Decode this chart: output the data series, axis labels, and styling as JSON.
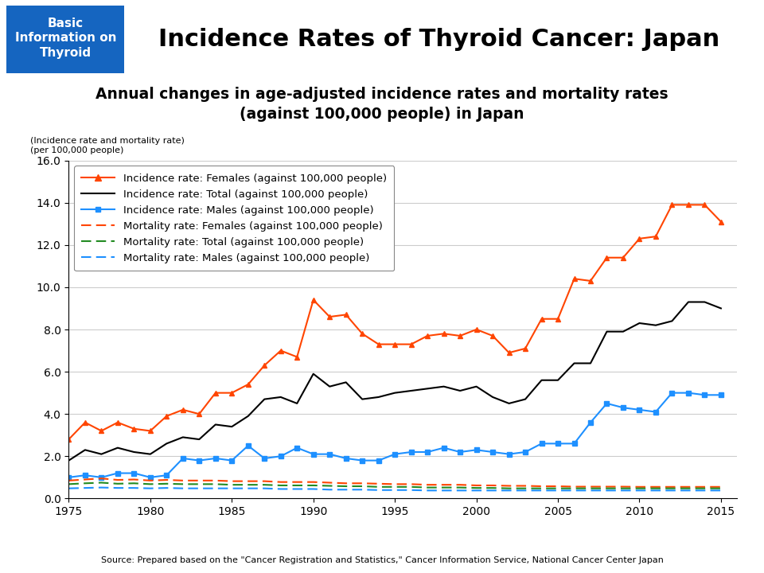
{
  "title_main": "Incidence Rates of Thyroid Cancer: Japan",
  "title_box": "Basic\nInformation on\nThyroid",
  "subtitle": "Annual changes in age-adjusted incidence rates and mortality rates\n(against 100,000 people) in Japan",
  "ylabel": "(Incidence rate and mortality rate)\n(per 100,000 people)",
  "source": "Source: Prepared based on the \"Cancer Registration and Statistics,\" Cancer Information Service, National Cancer Center Japan",
  "ylim": [
    0.0,
    16.0
  ],
  "yticks": [
    0.0,
    2.0,
    4.0,
    6.0,
    8.0,
    10.0,
    12.0,
    14.0,
    16.0
  ],
  "xlim": [
    1975,
    2016
  ],
  "xticks": [
    1975,
    1980,
    1985,
    1990,
    1995,
    2000,
    2005,
    2010,
    2015
  ],
  "incidence_females": {
    "years": [
      1975,
      1976,
      1977,
      1978,
      1979,
      1980,
      1981,
      1982,
      1983,
      1984,
      1985,
      1986,
      1987,
      1988,
      1989,
      1990,
      1991,
      1992,
      1993,
      1994,
      1995,
      1996,
      1997,
      1998,
      1999,
      2000,
      2001,
      2002,
      2003,
      2004,
      2005,
      2006,
      2007,
      2008,
      2009,
      2010,
      2011,
      2012,
      2013,
      2014,
      2015
    ],
    "values": [
      2.8,
      3.6,
      3.2,
      3.6,
      3.3,
      3.2,
      3.9,
      4.2,
      4.0,
      5.0,
      5.0,
      5.4,
      6.3,
      7.0,
      6.7,
      9.4,
      8.6,
      8.7,
      7.8,
      7.3,
      7.3,
      7.3,
      7.7,
      7.8,
      7.7,
      8.0,
      7.7,
      6.9,
      7.1,
      8.5,
      8.5,
      10.4,
      10.3,
      11.4,
      11.4,
      12.3,
      12.4,
      13.9,
      13.9,
      13.9,
      13.1
    ],
    "color": "#FF4500",
    "label": "Incidence rate: Females (against 100,000 people)"
  },
  "incidence_total": {
    "years": [
      1975,
      1976,
      1977,
      1978,
      1979,
      1980,
      1981,
      1982,
      1983,
      1984,
      1985,
      1986,
      1987,
      1988,
      1989,
      1990,
      1991,
      1992,
      1993,
      1994,
      1995,
      1996,
      1997,
      1998,
      1999,
      2000,
      2001,
      2002,
      2003,
      2004,
      2005,
      2006,
      2007,
      2008,
      2009,
      2010,
      2011,
      2012,
      2013,
      2014,
      2015
    ],
    "values": [
      1.8,
      2.3,
      2.1,
      2.4,
      2.2,
      2.1,
      2.6,
      2.9,
      2.8,
      3.5,
      3.4,
      3.9,
      4.7,
      4.8,
      4.5,
      5.9,
      5.3,
      5.5,
      4.7,
      4.8,
      5.0,
      5.1,
      5.2,
      5.3,
      5.1,
      5.3,
      4.8,
      4.5,
      4.7,
      5.6,
      5.6,
      6.4,
      6.4,
      7.9,
      7.9,
      8.3,
      8.2,
      8.4,
      9.3,
      9.3,
      9.0
    ],
    "color": "#000000",
    "label": "Incidence rate: Total (against 100,000 people)"
  },
  "incidence_males": {
    "years": [
      1975,
      1976,
      1977,
      1978,
      1979,
      1980,
      1981,
      1982,
      1983,
      1984,
      1985,
      1986,
      1987,
      1988,
      1989,
      1990,
      1991,
      1992,
      1993,
      1994,
      1995,
      1996,
      1997,
      1998,
      1999,
      2000,
      2001,
      2002,
      2003,
      2004,
      2005,
      2006,
      2007,
      2008,
      2009,
      2010,
      2011,
      2012,
      2013,
      2014,
      2015
    ],
    "values": [
      1.0,
      1.1,
      1.0,
      1.2,
      1.2,
      1.0,
      1.1,
      1.9,
      1.8,
      1.9,
      1.8,
      2.5,
      1.9,
      2.0,
      2.4,
      2.1,
      2.1,
      1.9,
      1.8,
      1.8,
      2.1,
      2.2,
      2.2,
      2.4,
      2.2,
      2.3,
      2.2,
      2.1,
      2.2,
      2.6,
      2.6,
      2.6,
      3.6,
      4.5,
      4.3,
      4.2,
      4.1,
      5.0,
      5.0,
      4.9,
      4.9
    ],
    "color": "#1E90FF",
    "label": "Incidence rate: Males (against 100,000 people)"
  },
  "mortality_females": {
    "years": [
      1975,
      1976,
      1977,
      1978,
      1979,
      1980,
      1981,
      1982,
      1983,
      1984,
      1985,
      1986,
      1987,
      1988,
      1989,
      1990,
      1991,
      1992,
      1993,
      1994,
      1995,
      1996,
      1997,
      1998,
      1999,
      2000,
      2001,
      2002,
      2003,
      2004,
      2005,
      2006,
      2007,
      2008,
      2009,
      2010,
      2011,
      2012,
      2013,
      2014,
      2015
    ],
    "values": [
      0.85,
      0.9,
      0.95,
      0.88,
      0.9,
      0.85,
      0.88,
      0.85,
      0.85,
      0.85,
      0.82,
      0.82,
      0.82,
      0.78,
      0.78,
      0.78,
      0.75,
      0.72,
      0.72,
      0.7,
      0.68,
      0.68,
      0.65,
      0.65,
      0.65,
      0.62,
      0.62,
      0.6,
      0.6,
      0.58,
      0.58,
      0.56,
      0.56,
      0.56,
      0.56,
      0.55,
      0.55,
      0.55,
      0.55,
      0.55,
      0.55
    ],
    "color": "#FF4500",
    "label": "Mortality rate: Females (against 100,000 people)"
  },
  "mortality_total": {
    "years": [
      1975,
      1976,
      1977,
      1978,
      1979,
      1980,
      1981,
      1982,
      1983,
      1984,
      1985,
      1986,
      1987,
      1988,
      1989,
      1990,
      1991,
      1992,
      1993,
      1994,
      1995,
      1996,
      1997,
      1998,
      1999,
      2000,
      2001,
      2002,
      2003,
      2004,
      2005,
      2006,
      2007,
      2008,
      2009,
      2010,
      2011,
      2012,
      2013,
      2014,
      2015
    ],
    "values": [
      0.68,
      0.72,
      0.75,
      0.7,
      0.72,
      0.68,
      0.7,
      0.68,
      0.68,
      0.68,
      0.65,
      0.65,
      0.65,
      0.62,
      0.62,
      0.62,
      0.6,
      0.58,
      0.58,
      0.55,
      0.55,
      0.55,
      0.52,
      0.52,
      0.52,
      0.5,
      0.5,
      0.48,
      0.48,
      0.48,
      0.48,
      0.48,
      0.48,
      0.48,
      0.48,
      0.48,
      0.48,
      0.48,
      0.48,
      0.48,
      0.48
    ],
    "color": "#228B22",
    "label": "Mortality rate: Total (against 100,000 people)"
  },
  "mortality_males": {
    "years": [
      1975,
      1976,
      1977,
      1978,
      1979,
      1980,
      1981,
      1982,
      1983,
      1984,
      1985,
      1986,
      1987,
      1988,
      1989,
      1990,
      1991,
      1992,
      1993,
      1994,
      1995,
      1996,
      1997,
      1998,
      1999,
      2000,
      2001,
      2002,
      2003,
      2004,
      2005,
      2006,
      2007,
      2008,
      2009,
      2010,
      2011,
      2012,
      2013,
      2014,
      2015
    ],
    "values": [
      0.48,
      0.5,
      0.52,
      0.5,
      0.5,
      0.48,
      0.5,
      0.48,
      0.48,
      0.48,
      0.48,
      0.48,
      0.48,
      0.45,
      0.45,
      0.45,
      0.42,
      0.42,
      0.42,
      0.4,
      0.4,
      0.4,
      0.38,
      0.38,
      0.38,
      0.38,
      0.38,
      0.38,
      0.38,
      0.38,
      0.38,
      0.38,
      0.38,
      0.38,
      0.38,
      0.38,
      0.38,
      0.38,
      0.38,
      0.38,
      0.38
    ],
    "color": "#1E90FF",
    "label": "Mortality rate: Males (against 100,000 people)"
  },
  "header_bg_color": "#cce0f0",
  "title_box_bg": "#1565C0",
  "title_box_text_color": "#FFFFFF"
}
